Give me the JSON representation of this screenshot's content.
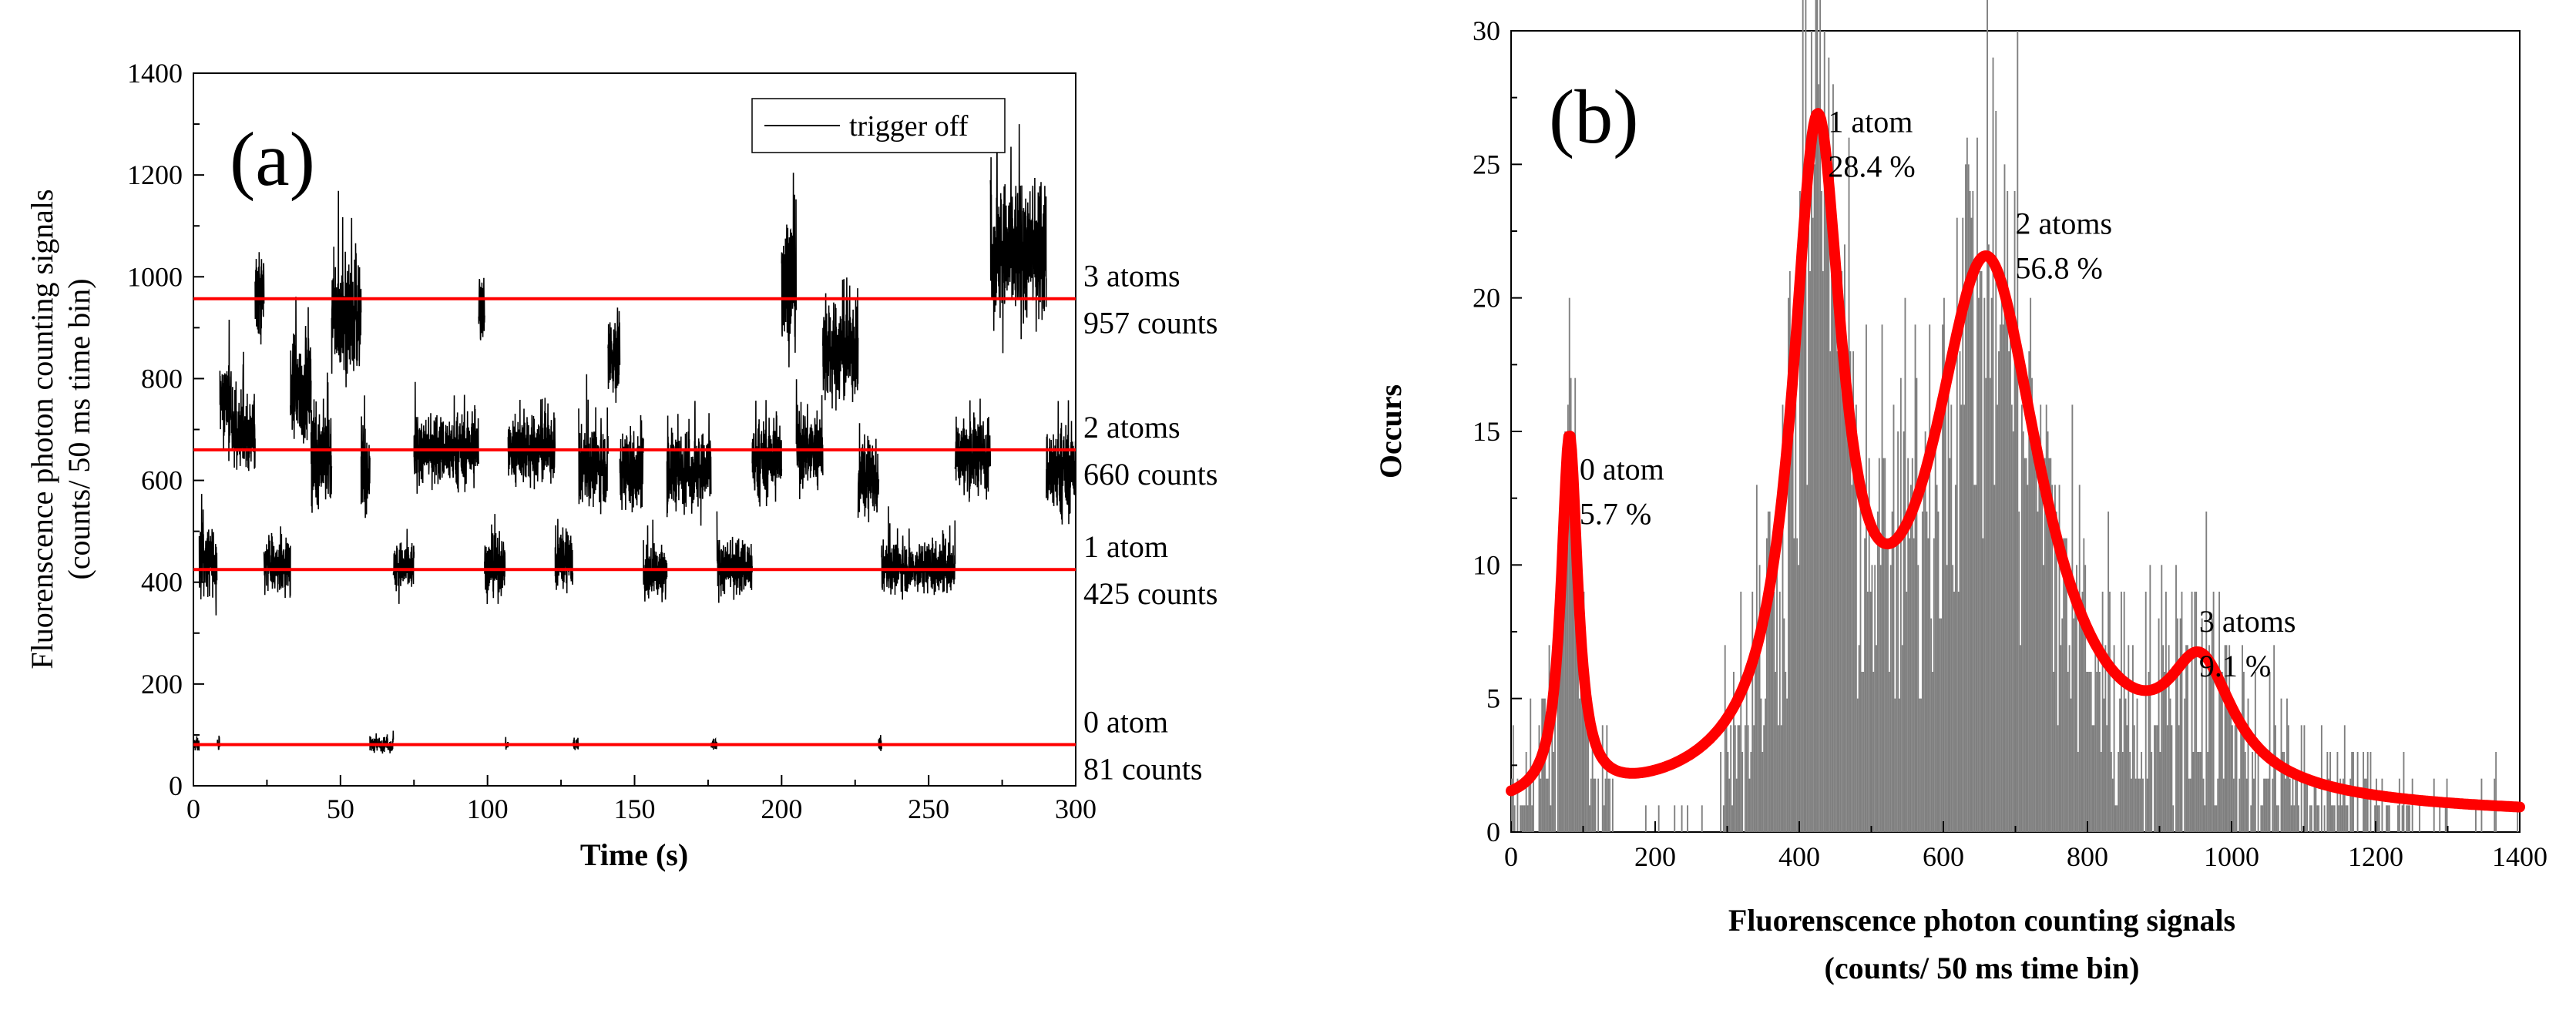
{
  "chart_data": [
    {
      "panel": "(a)",
      "type": "line",
      "xlabel": "Time (s)",
      "ylabel": "Fluorenscence photon counting signals",
      "ylabel2": "(counts/ 50 ms time bin)",
      "xlim": [
        0,
        300
      ],
      "ylim": [
        0,
        1400
      ],
      "xticks": [
        0,
        50,
        100,
        150,
        200,
        250,
        300
      ],
      "yticks": [
        0,
        200,
        400,
        600,
        800,
        1000,
        1200,
        1400
      ],
      "legend": {
        "label": "trigger off",
        "position": "top-right"
      },
      "trace_color": "#000000",
      "level_color": "#ff0000",
      "trace_segments": [
        {
          "t0": 0,
          "t1": 2,
          "level": 81,
          "noise": 12
        },
        {
          "t0": 2,
          "t1": 8,
          "level": 440,
          "noise": 55
        },
        {
          "t0": 8,
          "t1": 9,
          "level": 81,
          "noise": 10
        },
        {
          "t0": 9,
          "t1": 13,
          "level": 760,
          "noise": 70
        },
        {
          "t0": 13,
          "t1": 21,
          "level": 690,
          "noise": 55
        },
        {
          "t0": 21,
          "t1": 24,
          "level": 950,
          "noise": 80
        },
        {
          "t0": 24,
          "t1": 33,
          "level": 430,
          "noise": 45
        },
        {
          "t0": 33,
          "t1": 40,
          "level": 780,
          "noise": 90
        },
        {
          "t0": 40,
          "t1": 47,
          "level": 650,
          "noise": 80
        },
        {
          "t0": 47,
          "t1": 57,
          "level": 920,
          "noise": 90
        },
        {
          "t0": 57,
          "t1": 60,
          "level": 620,
          "noise": 60
        },
        {
          "t0": 60,
          "t1": 68,
          "level": 81,
          "noise": 12
        },
        {
          "t0": 68,
          "t1": 75,
          "level": 430,
          "noise": 40
        },
        {
          "t0": 75,
          "t1": 97,
          "level": 660,
          "noise": 55
        },
        {
          "t0": 97,
          "t1": 99,
          "level": 950,
          "noise": 70
        },
        {
          "t0": 99,
          "t1": 106,
          "level": 430,
          "noise": 45
        },
        {
          "t0": 106,
          "t1": 107,
          "level": 81,
          "noise": 10
        },
        {
          "t0": 107,
          "t1": 123,
          "level": 660,
          "noise": 55
        },
        {
          "t0": 123,
          "t1": 129,
          "level": 440,
          "noise": 45
        },
        {
          "t0": 129,
          "t1": 131,
          "level": 81,
          "noise": 10
        },
        {
          "t0": 131,
          "t1": 141,
          "level": 630,
          "noise": 60
        },
        {
          "t0": 141,
          "t1": 145,
          "level": 850,
          "noise": 80
        },
        {
          "t0": 145,
          "t1": 153,
          "level": 620,
          "noise": 60
        },
        {
          "t0": 153,
          "t1": 161,
          "level": 420,
          "noise": 45
        },
        {
          "t0": 161,
          "t1": 176,
          "level": 620,
          "noise": 60
        },
        {
          "t0": 176,
          "t1": 178,
          "level": 81,
          "noise": 10
        },
        {
          "t0": 178,
          "t1": 190,
          "level": 430,
          "noise": 45
        },
        {
          "t0": 190,
          "t1": 200,
          "level": 640,
          "noise": 60
        },
        {
          "t0": 200,
          "t1": 205,
          "level": 1000,
          "noise": 110
        },
        {
          "t0": 205,
          "t1": 214,
          "level": 660,
          "noise": 60
        },
        {
          "t0": 214,
          "t1": 226,
          "level": 850,
          "noise": 80
        },
        {
          "t0": 226,
          "t1": 233,
          "level": 600,
          "noise": 60
        },
        {
          "t0": 233,
          "t1": 234,
          "level": 81,
          "noise": 10
        },
        {
          "t0": 234,
          "t1": 259,
          "level": 430,
          "noise": 40
        },
        {
          "t0": 259,
          "t1": 271,
          "level": 650,
          "noise": 60
        },
        {
          "t0": 271,
          "t1": 290,
          "level": 1050,
          "noise": 110
        },
        {
          "t0": 290,
          "t1": 300,
          "level": 620,
          "noise": 70
        }
      ],
      "levels": [
        {
          "value": 957,
          "label": "3 atoms",
          "sublabel": "957 counts"
        },
        {
          "value": 660,
          "label": "2 atoms",
          "sublabel": "660 counts"
        },
        {
          "value": 425,
          "label": "1 atom",
          "sublabel": "425 counts"
        },
        {
          "value": 81,
          "label": "0 atom",
          "sublabel": "81 counts"
        }
      ]
    },
    {
      "panel": "(b)",
      "type": "bar",
      "xlabel": "Fluorenscence photon counting signals",
      "xlabel2": "(counts/ 50 ms time bin)",
      "ylabel": "Occurs",
      "xlim": [
        0,
        1400
      ],
      "ylim": [
        0,
        30
      ],
      "xticks": [
        0,
        200,
        400,
        600,
        800,
        1000,
        1200,
        1400
      ],
      "yticks": [
        0,
        5,
        10,
        15,
        20,
        25,
        30
      ],
      "bar_color": "#7f7f7f",
      "fit_color": "#ff0000",
      "fit_peaks": [
        {
          "center": 81,
          "height": 13.5,
          "width": 14
        },
        {
          "center": 425,
          "height": 23.5,
          "width": 42
        },
        {
          "center": 660,
          "height": 20.2,
          "width": 95
        },
        {
          "center": 957,
          "height": 4.2,
          "width": 55
        }
      ],
      "fit_baseline": 0.5,
      "annotations": [
        {
          "label": "0 atom",
          "percent": "5.7 %",
          "x": 95,
          "y": 13.2
        },
        {
          "label": "1 atom",
          "percent": "28.4 %",
          "x": 440,
          "y": 26.2
        },
        {
          "label": "2 atoms",
          "percent": "56.8 %",
          "x": 700,
          "y": 22.4
        },
        {
          "label": "3 atoms",
          "percent": "9.1 %",
          "x": 955,
          "y": 7.5
        }
      ]
    }
  ]
}
